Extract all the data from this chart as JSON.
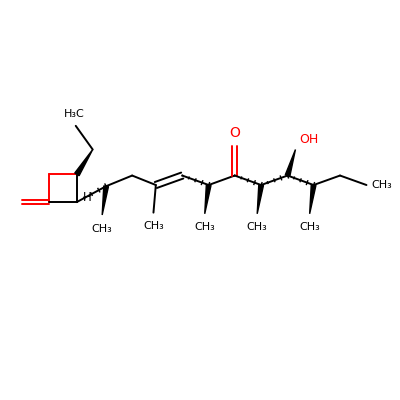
{
  "background": "#ffffff",
  "bond_color": "#000000",
  "oxygen_color": "#ff0000",
  "line_width": 1.4,
  "figure_size": [
    4.0,
    4.0
  ],
  "dpi": 100,
  "xlim": [
    0,
    10
  ],
  "ylim": [
    0,
    10
  ]
}
